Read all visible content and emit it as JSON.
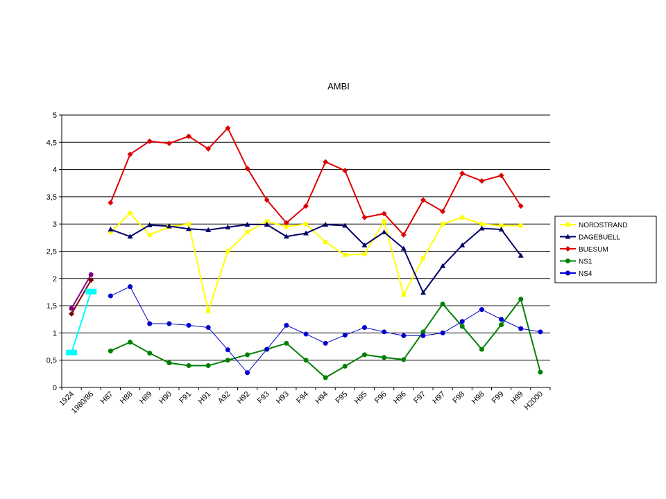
{
  "chart_data": {
    "type": "line",
    "title": "AMBI",
    "xlabel": "",
    "ylabel": "",
    "ylim": [
      0,
      5
    ],
    "yticks": [
      "0",
      "0,5",
      "1",
      "1,5",
      "2",
      "2,5",
      "3",
      "3,5",
      "4",
      "4,5",
      "5"
    ],
    "ytick_values": [
      0,
      0.5,
      1,
      1.5,
      2,
      2.5,
      3,
      3.5,
      4,
      4.5,
      5
    ],
    "categories": [
      "1924",
      "1980/86",
      "H87",
      "H88",
      "H89",
      "H90",
      "F91",
      "H91",
      "A92",
      "H92",
      "F93",
      "H93",
      "F94",
      "H94",
      "F95",
      "H95",
      "F96",
      "H96",
      "F97",
      "H97",
      "F98",
      "H98",
      "F99",
      "H99",
      "H2000"
    ],
    "grid": "horizontal",
    "legend_position": "right",
    "series": [
      {
        "name": "NORDSTRAND",
        "color": "#ffff00",
        "marker": "square",
        "values": [
          null,
          null,
          2.85,
          3.2,
          2.8,
          2.95,
          3.0,
          1.4,
          2.5,
          2.85,
          3.05,
          2.95,
          3.0,
          2.67,
          2.43,
          2.45,
          3.05,
          1.7,
          2.37,
          3.0,
          3.12,
          3.0,
          2.97,
          2.97,
          null
        ]
      },
      {
        "name": "DAGEBUELL",
        "color": "#000066",
        "marker": "triangle",
        "values": [
          null,
          null,
          2.9,
          2.77,
          2.98,
          2.96,
          2.91,
          2.89,
          2.94,
          2.99,
          2.99,
          2.77,
          2.83,
          2.99,
          2.97,
          2.61,
          2.85,
          2.55,
          1.74,
          2.23,
          2.61,
          2.92,
          2.9,
          2.42,
          null
        ]
      },
      {
        "name": "BUESUM",
        "color": "#dd0000",
        "marker": "diamond",
        "values": [
          null,
          null,
          3.39,
          4.28,
          4.52,
          4.48,
          4.61,
          4.38,
          4.76,
          4.02,
          3.44,
          3.02,
          3.33,
          4.14,
          3.98,
          3.12,
          3.19,
          2.8,
          3.44,
          3.23,
          3.93,
          3.79,
          3.89,
          3.33,
          null
        ]
      },
      {
        "name": "NS1",
        "color": "#008000",
        "marker": "circle",
        "values": [
          null,
          null,
          0.67,
          0.83,
          0.63,
          0.45,
          0.4,
          0.4,
          0.5,
          0.6,
          0.7,
          0.81,
          0.5,
          0.18,
          0.39,
          0.6,
          0.55,
          0.51,
          1.02,
          1.53,
          1.12,
          0.7,
          1.15,
          1.62,
          0.28
        ]
      },
      {
        "name": "NS4",
        "color": "#0000cc",
        "marker": "circle",
        "values": [
          null,
          null,
          1.68,
          1.85,
          1.17,
          1.17,
          1.14,
          1.1,
          0.69,
          0.27,
          0.7,
          1.14,
          0.98,
          0.81,
          0.96,
          1.1,
          1.02,
          0.95,
          0.95,
          1.0,
          1.21,
          1.43,
          1.25,
          1.08,
          1.02
        ]
      }
    ],
    "unlabeled_series": [
      {
        "color": "#800080",
        "marker": "circle",
        "values": [
          1.45,
          2.07
        ]
      },
      {
        "color": "#800000",
        "marker": "diamond",
        "values": [
          1.35,
          1.97
        ]
      },
      {
        "color": "#00ffff",
        "marker": "rect",
        "values": [
          0.64,
          1.76
        ]
      }
    ]
  }
}
